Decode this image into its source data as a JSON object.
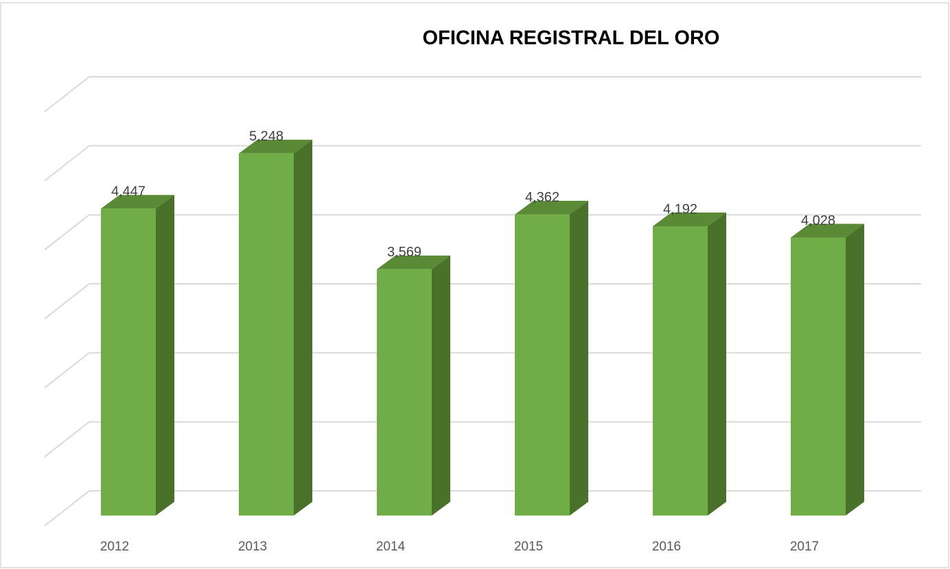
{
  "chart_data": {
    "type": "bar3d",
    "title": "OFICINA REGISTRAL DEL ORO",
    "categories": [
      "2012",
      "2013",
      "2014",
      "2015",
      "2016",
      "2017"
    ],
    "values": [
      4447,
      5248,
      3569,
      4362,
      4192,
      4028
    ],
    "value_labels": [
      "4,447",
      "5,248",
      "3,569",
      "4,362",
      "4,192",
      "4,028"
    ],
    "color": "#70ad47",
    "ylim": [
      0,
      6000
    ],
    "yticks": [
      0,
      1000,
      2000,
      3000,
      4000,
      5000,
      6000
    ],
    "grid": true
  }
}
